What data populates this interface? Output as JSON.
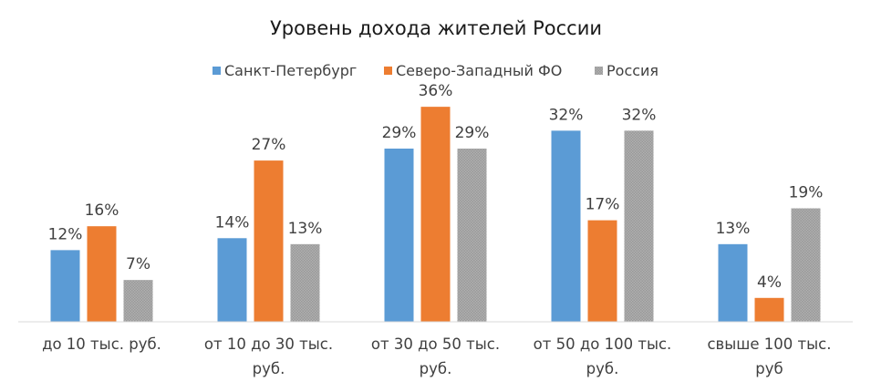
{
  "chart_data": {
    "type": "bar",
    "title": "Уровень дохода жителей России",
    "categories": [
      [
        "до 10 тыс. руб."
      ],
      [
        "от 10 до 30 тыс.",
        "руб."
      ],
      [
        "от 30 до 50 тыс.",
        "руб."
      ],
      [
        "от 50 до 100 тыс.",
        "руб."
      ],
      [
        "свыше 100 тыс.",
        "руб"
      ]
    ],
    "series": [
      {
        "name": "Санкт-Петербург",
        "color": "#5B9BD5",
        "pattern": false,
        "values": [
          12,
          14,
          29,
          32,
          13
        ]
      },
      {
        "name": "Северо-Западный ФО",
        "color": "#ED7D31",
        "pattern": false,
        "values": [
          16,
          27,
          36,
          17,
          4
        ]
      },
      {
        "name": "Россия",
        "color": "#A5A5A5",
        "pattern": true,
        "values": [
          7,
          13,
          29,
          32,
          19
        ]
      }
    ],
    "value_suffix": "%",
    "ylim": [
      0,
      40
    ],
    "legend_position": "top-center",
    "grid": false
  }
}
